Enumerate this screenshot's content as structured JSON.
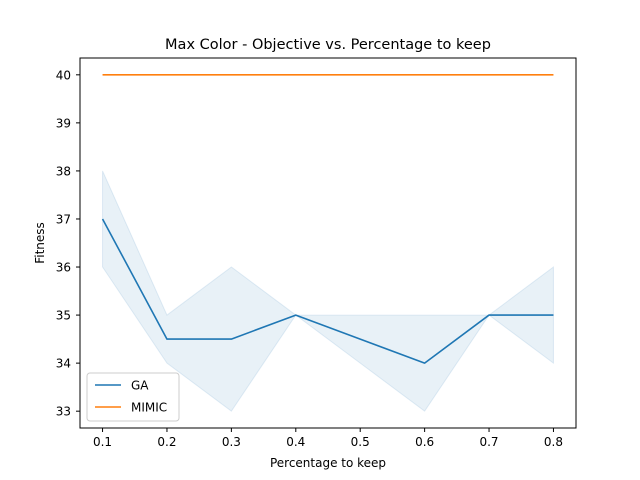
{
  "chart_data": {
    "type": "line",
    "title": "Max Color - Objective vs. Percentage to keep",
    "xlabel": "Percentage to keep",
    "ylabel": "Fitness",
    "xlim": [
      0.065,
      0.835
    ],
    "ylim": [
      32.65,
      40.35
    ],
    "x_ticks": [
      "0.1",
      "0.2",
      "0.3",
      "0.4",
      "0.5",
      "0.6",
      "0.7",
      "0.8"
    ],
    "y_ticks": [
      "33",
      "34",
      "35",
      "36",
      "37",
      "38",
      "39",
      "40"
    ],
    "grid": false,
    "legend_position": "lower-left",
    "x": [
      0.1,
      0.2,
      0.3,
      0.4,
      0.5,
      0.6,
      0.7,
      0.8
    ],
    "series": [
      {
        "name": "GA",
        "color": "#1f77b4",
        "values": [
          37,
          34.5,
          34.5,
          35,
          null,
          34,
          35,
          35
        ],
        "band_upper": [
          38,
          35,
          36,
          35,
          null,
          35,
          35,
          36
        ],
        "band_lower": [
          36,
          34,
          33,
          35,
          null,
          33,
          35,
          34
        ]
      },
      {
        "name": "MIMIC",
        "color": "#ff7f0e",
        "values": [
          40,
          40,
          40,
          40,
          40,
          40,
          40,
          40
        ]
      }
    ]
  }
}
